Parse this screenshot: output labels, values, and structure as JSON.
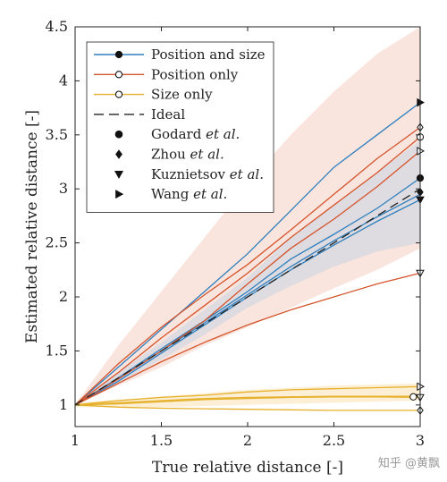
{
  "chart_data": {
    "type": "line",
    "xlabel": "True relative distance [-]",
    "ylabel": "Estimated relative distance [-]",
    "xlim": [
      1,
      3
    ],
    "ylim": [
      0.8,
      4.5
    ],
    "xticks": [
      1,
      1.5,
      2,
      2.5,
      3
    ],
    "yticks": [
      1,
      1.5,
      2,
      2.5,
      3,
      3.5,
      4,
      4.5
    ],
    "xtick_labels": [
      "1",
      "1.5",
      "2",
      "2.5",
      "3"
    ],
    "ytick_labels": [
      "1",
      "1.5",
      "2",
      "2.5",
      "3",
      "3.5",
      "4",
      "4.5"
    ],
    "grid": false,
    "legend_position": "top-left",
    "colors": {
      "position_and_size": "#2f7fbf",
      "position_only": "#d4542c",
      "size_only": "#e6b02a",
      "ideal": "#222222",
      "band_position_only": "#f8e0d8",
      "band_position_and_size": "#d9dbe0",
      "band_size_only": "#fbeccf"
    },
    "legend": [
      {
        "label": "Position and size",
        "style": "line-filled-circle",
        "color": "#2f7fbf"
      },
      {
        "label": "Position only",
        "style": "line-open-circle",
        "color": "#d4542c"
      },
      {
        "label": "Size only",
        "style": "line-open-circle",
        "color": "#e6b02a"
      },
      {
        "label": "Ideal",
        "style": "dashed",
        "color": "#222222"
      },
      {
        "label_main": "Godard ",
        "label_em": "et al.",
        "style": "filled-circle",
        "color": "#111111"
      },
      {
        "label_main": "Zhou ",
        "label_em": "et al.",
        "style": "filled-diamond",
        "color": "#111111"
      },
      {
        "label_main": "Kuznietsov ",
        "label_em": "et al.",
        "style": "filled-triangle-down",
        "color": "#111111"
      },
      {
        "label_main": "Wang ",
        "label_em": "et al.",
        "style": "filled-triangle-right",
        "color": "#111111"
      }
    ],
    "bands": [
      {
        "group": "position_only",
        "x": [
          1,
          1.25,
          1.5,
          1.75,
          2,
          2.25,
          2.5,
          2.75,
          3
        ],
        "lower": [
          1,
          1.18,
          1.35,
          1.55,
          1.72,
          1.9,
          2.08,
          2.25,
          2.45
        ],
        "upper": [
          1,
          1.55,
          2.05,
          2.55,
          3.05,
          3.5,
          3.9,
          4.25,
          4.5
        ]
      },
      {
        "group": "position_and_size",
        "x": [
          1,
          1.25,
          1.5,
          1.75,
          2,
          2.25,
          2.5,
          2.75,
          3
        ],
        "lower": [
          1,
          1.2,
          1.42,
          1.65,
          1.9,
          2.1,
          2.28,
          2.42,
          2.5
        ],
        "upper": [
          1,
          1.3,
          1.58,
          1.88,
          2.18,
          2.55,
          2.85,
          3.15,
          3.45
        ]
      },
      {
        "group": "size_only",
        "x": [
          1,
          1.5,
          2,
          2.5,
          3
        ],
        "lower": [
          0.98,
          0.98,
          1.0,
          1.02,
          1.04
        ],
        "upper": [
          1.02,
          1.08,
          1.14,
          1.18,
          1.2
        ]
      }
    ],
    "series": [
      {
        "name": "Position and size",
        "group": "position_and_size",
        "x": [
          1,
          1.25,
          1.5,
          1.75,
          2,
          2.25,
          2.5,
          2.75,
          3
        ],
        "values": [
          1,
          1.35,
          1.7,
          2.05,
          2.4,
          2.8,
          3.2,
          3.5,
          3.8
        ]
      },
      {
        "group": "position_and_size",
        "x": [
          1,
          1.25,
          1.5,
          1.75,
          2,
          2.25,
          2.5,
          2.75,
          3
        ],
        "values": [
          1,
          1.25,
          1.52,
          1.78,
          2.05,
          2.35,
          2.58,
          2.82,
          3.1
        ]
      },
      {
        "group": "position_and_size",
        "x": [
          1,
          1.25,
          1.5,
          1.75,
          2,
          2.25,
          2.5,
          2.75,
          3
        ],
        "values": [
          1,
          1.24,
          1.5,
          1.76,
          2.02,
          2.28,
          2.52,
          2.74,
          2.95
        ]
      },
      {
        "group": "position_and_size",
        "x": [
          1,
          1.25,
          1.5,
          1.75,
          2,
          2.25,
          2.5,
          2.75,
          3
        ],
        "values": [
          1,
          1.22,
          1.48,
          1.74,
          2.0,
          2.25,
          2.48,
          2.7,
          2.9
        ]
      },
      {
        "name": "Position only",
        "group": "position_only",
        "x": [
          1,
          1.25,
          1.5,
          1.75,
          2,
          2.25,
          2.5,
          2.75,
          3
        ],
        "values": [
          1,
          1.38,
          1.72,
          2.02,
          2.3,
          2.62,
          2.95,
          3.28,
          3.57
        ]
      },
      {
        "group": "position_only",
        "x": [
          1,
          1.25,
          1.5,
          1.75,
          2,
          2.25,
          2.5,
          2.75,
          3
        ],
        "values": [
          1,
          1.3,
          1.62,
          1.92,
          2.22,
          2.55,
          2.85,
          3.15,
          3.48
        ]
      },
      {
        "group": "position_only",
        "x": [
          1,
          1.25,
          1.5,
          1.75,
          2,
          2.25,
          2.5,
          2.75,
          3
        ],
        "values": [
          1,
          1.24,
          1.5,
          1.78,
          2.12,
          2.45,
          2.72,
          3.02,
          3.35
        ]
      },
      {
        "group": "position_only",
        "x": [
          1,
          1.25,
          1.5,
          1.75,
          2,
          2.25,
          2.5,
          2.75,
          3
        ],
        "values": [
          1,
          1.2,
          1.4,
          1.58,
          1.74,
          1.88,
          2.0,
          2.12,
          2.22
        ]
      },
      {
        "name": "Size only",
        "group": "size_only",
        "x": [
          1,
          1.25,
          1.5,
          1.75,
          2,
          2.25,
          2.5,
          2.75,
          3
        ],
        "values": [
          1,
          1.04,
          1.07,
          1.09,
          1.12,
          1.14,
          1.15,
          1.16,
          1.17
        ]
      },
      {
        "group": "size_only",
        "x": [
          1,
          1.25,
          1.5,
          1.75,
          2,
          2.25,
          2.5,
          2.75,
          3
        ],
        "values": [
          1,
          1.02,
          1.04,
          1.06,
          1.07,
          1.075,
          1.08,
          1.08,
          1.08
        ]
      },
      {
        "group": "size_only",
        "x": [
          1,
          1.25,
          1.5,
          1.75,
          2,
          2.25,
          2.5,
          2.75,
          3
        ],
        "values": [
          1,
          1.01,
          1.03,
          1.05,
          1.06,
          1.07,
          1.075,
          1.075,
          1.07
        ]
      },
      {
        "group": "size_only",
        "x": [
          1,
          1.25,
          1.5,
          1.75,
          2,
          2.25,
          2.5,
          2.75,
          3
        ],
        "values": [
          1,
          0.98,
          0.97,
          0.965,
          0.96,
          0.955,
          0.95,
          0.95,
          0.95
        ]
      },
      {
        "name": "Ideal",
        "group": "ideal",
        "x": [
          1,
          3
        ],
        "values": [
          1,
          3
        ]
      }
    ],
    "end_markers": [
      {
        "x": 3,
        "y": 3.8,
        "method": "Wang",
        "marker": "triangle-right",
        "group": "position_and_size",
        "fill": true
      },
      {
        "x": 3,
        "y": 3.1,
        "method": "Godard",
        "marker": "circle",
        "group": "position_and_size",
        "fill": true
      },
      {
        "x": 3,
        "y": 2.97,
        "method": "Zhou",
        "marker": "diamond",
        "group": "position_and_size",
        "fill": true
      },
      {
        "x": 3,
        "y": 2.9,
        "method": "Kuznietsov",
        "marker": "triangle-down",
        "group": "position_and_size",
        "fill": true
      },
      {
        "x": 3,
        "y": 3.57,
        "method": "Zhou",
        "marker": "diamond",
        "group": "position_only",
        "fill": false
      },
      {
        "x": 3,
        "y": 3.48,
        "method": "Godard",
        "marker": "circle",
        "group": "position_only",
        "fill": false
      },
      {
        "x": 3,
        "y": 3.35,
        "method": "Wang",
        "marker": "triangle-right",
        "group": "position_only",
        "fill": false
      },
      {
        "x": 3,
        "y": 2.22,
        "method": "Kuznietsov",
        "marker": "triangle-down",
        "group": "position_only",
        "fill": false
      },
      {
        "x": 3,
        "y": 1.17,
        "method": "Wang",
        "marker": "triangle-right",
        "group": "size_only",
        "fill": false
      },
      {
        "x": 2.96,
        "y": 1.075,
        "method": "Godard",
        "marker": "circle",
        "group": "size_only",
        "fill": false
      },
      {
        "x": 3,
        "y": 1.07,
        "method": "Kuznietsov",
        "marker": "triangle-down",
        "group": "size_only",
        "fill": false
      },
      {
        "x": 3,
        "y": 0.95,
        "method": "Zhou",
        "marker": "diamond",
        "group": "size_only",
        "fill": false
      }
    ]
  },
  "watermark": "知乎 @黄飘"
}
